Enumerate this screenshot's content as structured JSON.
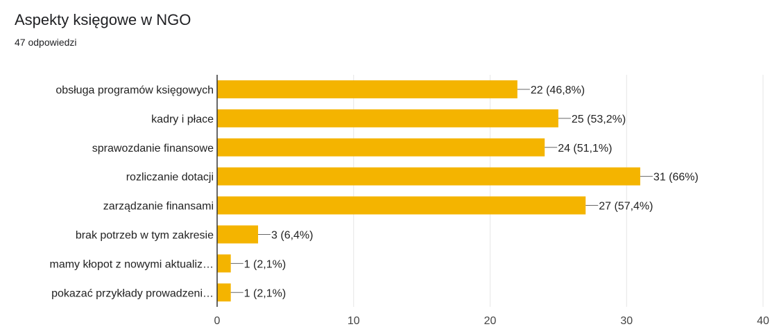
{
  "title": "Aspekty księgowe w NGO",
  "subtitle": "47 odpowiedzi",
  "chart_data": {
    "type": "bar",
    "orientation": "horizontal",
    "categories": [
      "obsługa programów księgowych",
      "kadry i płace",
      "sprawozdanie finansowe",
      "rozliczanie dotacji",
      "zarządzanie finansami",
      "brak potrzeb w tym zakresie",
      "mamy kłopot z nowymi aktualiz…",
      "pokazać przykłady prowadzeni…"
    ],
    "values": [
      22,
      25,
      24,
      31,
      27,
      3,
      1,
      1
    ],
    "value_labels": [
      "22 (46,8%)",
      "25 (53,2%)",
      "24 (51,1%)",
      "31 (66%)",
      "27 (57,4%)",
      "3 (6,4%)",
      "1 (2,1%)",
      "1 (2,1%)"
    ],
    "xlim": [
      0,
      40
    ],
    "x_ticks": [
      0,
      10,
      20,
      30,
      40
    ],
    "bar_color": "#f4b400",
    "grid": true
  }
}
